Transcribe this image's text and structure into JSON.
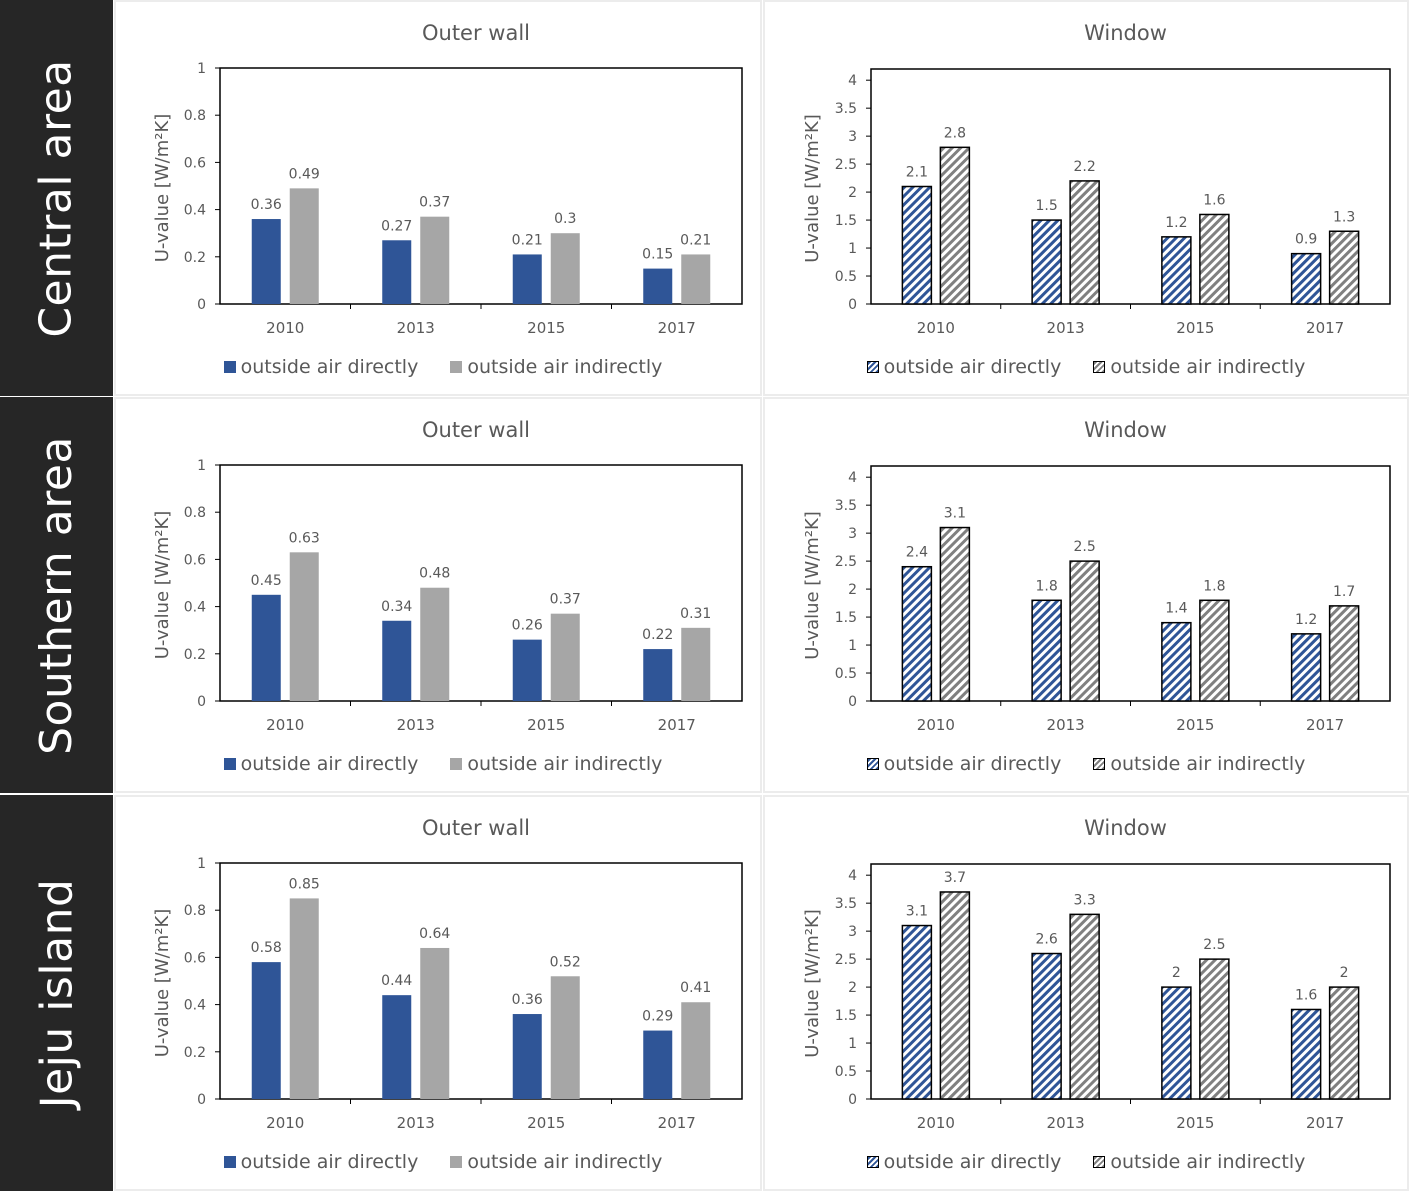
{
  "colors": {
    "direct": "#2F5597",
    "indirect": "#A6A6A6",
    "label_bg": "#262626",
    "hatch_direct": "#2F5597",
    "hatch_indirect": "#808080"
  },
  "legend": {
    "direct": "outside air directly",
    "indirect": "outside air indirectly"
  },
  "rows": [
    {
      "label": "Central area"
    },
    {
      "label": "Southern area"
    },
    {
      "label": "Jeju island"
    }
  ],
  "chart_data": [
    {
      "type": "bar",
      "region": "Central area",
      "title": "Outer wall",
      "ylabel": "U-value [W/m²K]",
      "categories": [
        "2010",
        "2013",
        "2015",
        "2017"
      ],
      "ylim": [
        0,
        1
      ],
      "yticks": [
        0,
        0.2,
        0.4,
        0.6,
        0.8,
        1
      ],
      "series": [
        {
          "name": "outside air directly",
          "values": [
            0.36,
            0.27,
            0.21,
            0.15
          ]
        },
        {
          "name": "outside air indirectly",
          "values": [
            0.49,
            0.37,
            0.3,
            0.21
          ]
        }
      ]
    },
    {
      "type": "bar",
      "region": "Central area",
      "title": "Window",
      "ylabel": "U-value [W/m²K]",
      "categories": [
        "2010",
        "2013",
        "2015",
        "2017"
      ],
      "ylim": [
        0,
        4.2
      ],
      "yticks": [
        0,
        0.5,
        1,
        1.5,
        2,
        2.5,
        3,
        3.5,
        4
      ],
      "series": [
        {
          "name": "outside air directly",
          "values": [
            2.1,
            1.5,
            1.2,
            0.9
          ]
        },
        {
          "name": "outside air indirectly",
          "values": [
            2.8,
            2.2,
            1.6,
            1.3
          ]
        }
      ]
    },
    {
      "type": "bar",
      "region": "Southern area",
      "title": "Outer wall",
      "ylabel": "U-value [W/m²K]",
      "categories": [
        "2010",
        "2013",
        "2015",
        "2017"
      ],
      "ylim": [
        0,
        1
      ],
      "yticks": [
        0,
        0.2,
        0.4,
        0.6,
        0.8,
        1
      ],
      "series": [
        {
          "name": "outside air directly",
          "values": [
            0.45,
            0.34,
            0.26,
            0.22
          ]
        },
        {
          "name": "outside air indirectly",
          "values": [
            0.63,
            0.48,
            0.37,
            0.31
          ]
        }
      ]
    },
    {
      "type": "bar",
      "region": "Southern area",
      "title": "Window",
      "ylabel": "U-value [W/m²K]",
      "categories": [
        "2010",
        "2013",
        "2015",
        "2017"
      ],
      "ylim": [
        0,
        4.2
      ],
      "yticks": [
        0,
        0.5,
        1,
        1.5,
        2,
        2.5,
        3,
        3.5,
        4
      ],
      "series": [
        {
          "name": "outside air directly",
          "values": [
            2.4,
            1.8,
            1.4,
            1.2
          ]
        },
        {
          "name": "outside air indirectly",
          "values": [
            3.1,
            2.5,
            1.8,
            1.7
          ]
        }
      ]
    },
    {
      "type": "bar",
      "region": "Jeju island",
      "title": "Outer wall",
      "ylabel": "U-value [W/m²K]",
      "categories": [
        "2010",
        "2013",
        "2015",
        "2017"
      ],
      "ylim": [
        0,
        1
      ],
      "yticks": [
        0,
        0.2,
        0.4,
        0.6,
        0.8,
        1
      ],
      "series": [
        {
          "name": "outside air directly",
          "values": [
            0.58,
            0.44,
            0.36,
            0.29
          ]
        },
        {
          "name": "outside air indirectly",
          "values": [
            0.85,
            0.64,
            0.52,
            0.41
          ]
        }
      ]
    },
    {
      "type": "bar",
      "region": "Jeju island",
      "title": "Window",
      "ylabel": "U-value [W/m²K]",
      "categories": [
        "2010",
        "2013",
        "2015",
        "2017"
      ],
      "ylim": [
        0,
        4.2
      ],
      "yticks": [
        0,
        0.5,
        1,
        1.5,
        2,
        2.5,
        3,
        3.5,
        4
      ],
      "series": [
        {
          "name": "outside air directly",
          "values": [
            3.1,
            2.6,
            2.0,
            1.6
          ]
        },
        {
          "name": "outside air indirectly",
          "values": [
            3.7,
            3.3,
            2.5,
            2.0
          ]
        }
      ]
    }
  ]
}
